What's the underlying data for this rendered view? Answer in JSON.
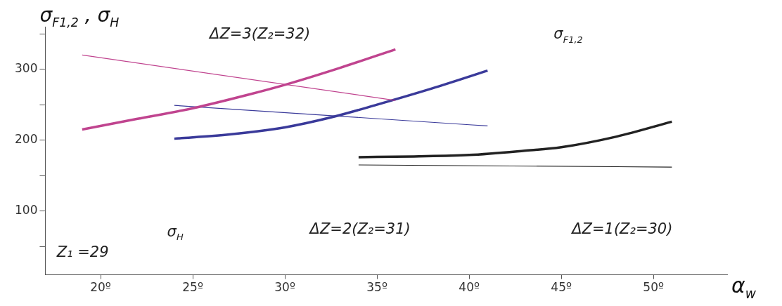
{
  "chart_data": {
    "type": "line",
    "xlabel": "α$_{w}$",
    "ylabel": "σ$_{F1,2}$ , σ$_{H}$",
    "xlim": [
      17,
      54
    ],
    "ylim": [
      10,
      360
    ],
    "xticks": [
      {
        "value": 20,
        "label": "20º"
      },
      {
        "value": 25,
        "label": "25º"
      },
      {
        "value": 30,
        "label": "30º"
      },
      {
        "value": 35,
        "label": "35º"
      },
      {
        "value": 40,
        "label": "40º"
      },
      {
        "value": 45,
        "label": "45º"
      },
      {
        "value": 50,
        "label": "50º"
      }
    ],
    "yticks": [
      {
        "value": 50,
        "label": null
      },
      100,
      {
        "value": 150,
        "label": null
      },
      200,
      {
        "value": 250,
        "label": null
      },
      300,
      {
        "value": 350,
        "label": null
      }
    ],
    "grid": false,
    "legend": false,
    "marker": "none",
    "line_style": "solid",
    "series": [
      {
        "color": "#c0448f",
        "x": [
          19,
          22,
          25,
          28,
          30,
          33,
          36
        ],
        "values": [
          215,
          230,
          245,
          264,
          278,
          302,
          328
        ]
      },
      {
        "color": "#c0448f",
        "x": [
          19,
          36
        ],
        "values": [
          320,
          256
        ]
      },
      {
        "color": "#3a3a9a",
        "x": [
          24,
          27,
          30,
          32.5,
          35,
          38,
          41
        ],
        "values": [
          202,
          208,
          218,
          232,
          250,
          273,
          298
        ]
      },
      {
        "color": "#3a3a9a",
        "x": [
          24,
          41
        ],
        "values": [
          249,
          220
        ]
      },
      {
        "color": "#222222",
        "x": [
          34,
          37,
          40,
          43,
          45,
          48,
          51
        ],
        "values": [
          176,
          177,
          179,
          185,
          190,
          205,
          226
        ]
      },
      {
        "color": "#222222",
        "x": [
          34,
          51
        ],
        "values": [
          165,
          162
        ]
      }
    ],
    "annotations": [
      "ΔZ=3(Z₂=32)",
      "σ$_{F1,2}$",
      "σ$_{H}$",
      "ΔZ=2(Z₂=31)",
      "ΔZ=1(Z₂=30)",
      "Z₁ =29"
    ]
  }
}
